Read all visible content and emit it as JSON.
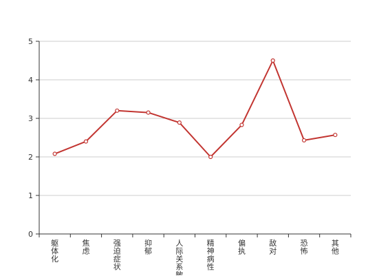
{
  "chart_data": {
    "type": "line",
    "categories": [
      "躯体化",
      "焦虑",
      "强迫症状",
      "抑郁",
      "人际关系敏感",
      "精神病性",
      "偏执",
      "敌对",
      "恐怖",
      "其他"
    ],
    "series": [
      {
        "values": [
          2.08,
          2.4,
          3.2,
          3.15,
          2.89,
          2.0,
          2.83,
          4.5,
          2.43,
          2.57
        ]
      }
    ],
    "ylim": [
      0,
      5
    ],
    "yticks": [
      0,
      1,
      2,
      3,
      4,
      5
    ],
    "grid": true,
    "title": "",
    "xlabel": "",
    "ylabel": "",
    "colors": {
      "line": "#c23531",
      "grid": "#cccccc",
      "axis": "#333333",
      "marker_fill": "#ffffff"
    }
  }
}
